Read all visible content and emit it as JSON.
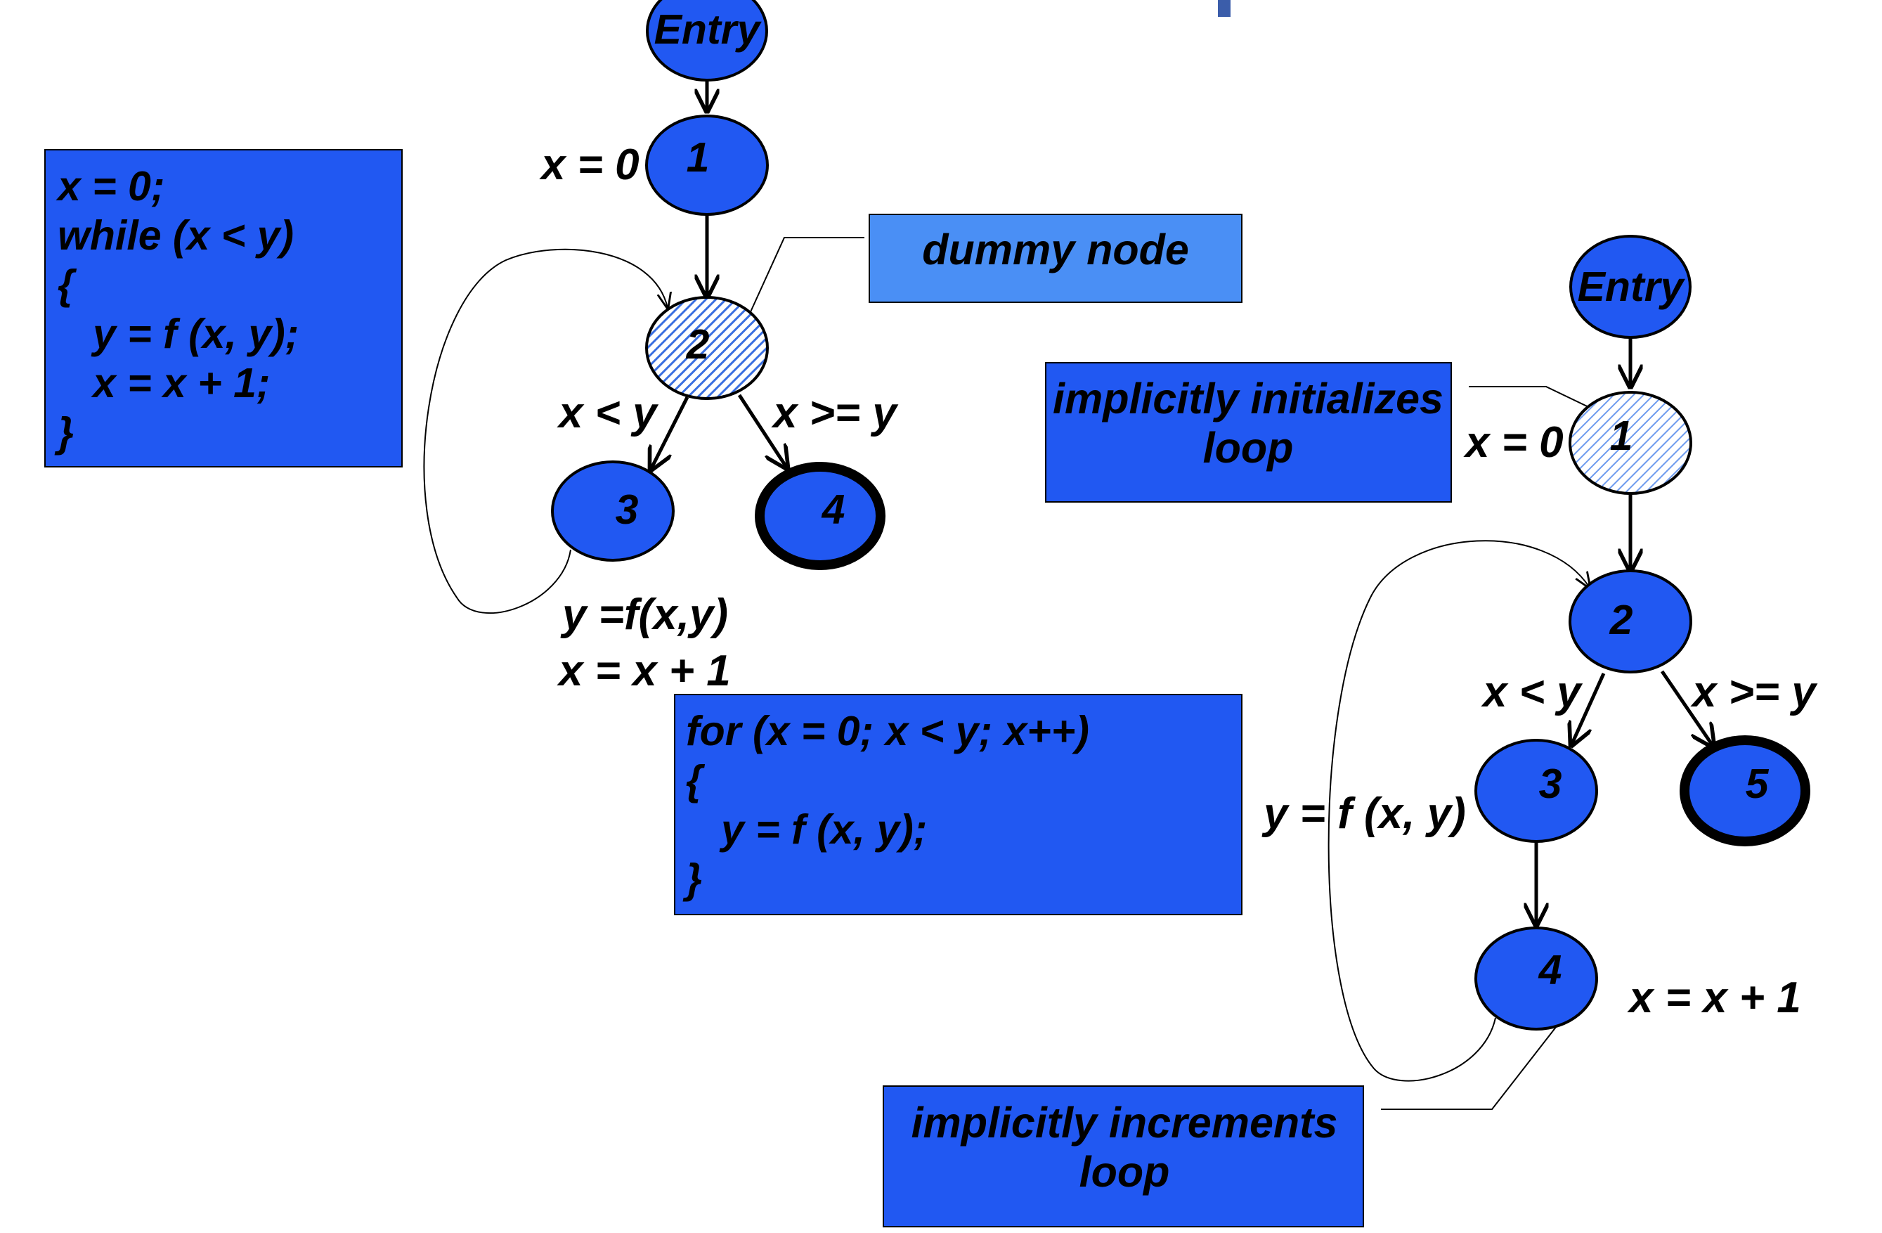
{
  "colors": {
    "box_fill": "#2158F2",
    "note_fill": "#4A8FF5",
    "node_fill": "#2158F2",
    "hatched_fill": "#5B8FE8",
    "stroke": "#000000",
    "accent_bar": "#3B5DAA"
  },
  "code_while": [
    "x = 0;",
    "while (x < y)",
    "{",
    "y = f (x, y);",
    "x = x + 1;",
    "}"
  ],
  "code_for": [
    "for (x = 0; x < y; x++)",
    "{",
    "y = f (x, y);",
    "}"
  ],
  "graph1": {
    "nodes": {
      "entry": "Entry",
      "n1": "1",
      "n2": "2",
      "n3": "3",
      "n4": "4"
    },
    "labels": {
      "assign_x0": "x = 0",
      "cond_true": "x < y",
      "cond_false": "x >= y",
      "body_line1": "y =f(x,y)",
      "body_line2": "x = x + 1"
    },
    "note_dummy": "dummy node"
  },
  "graph2": {
    "nodes": {
      "entry": "Entry",
      "n1": "1",
      "n2": "2",
      "n3": "3",
      "n4": "4",
      "n5": "5"
    },
    "labels": {
      "assign_x0": "x = 0",
      "cond_true": "x < y",
      "cond_false": "x >= y",
      "body": "y = f (x, y)",
      "increment": "x = x + 1"
    },
    "note_init": [
      "implicitly initializes",
      "loop"
    ],
    "note_incr": [
      "implicitly increments",
      "loop"
    ]
  }
}
